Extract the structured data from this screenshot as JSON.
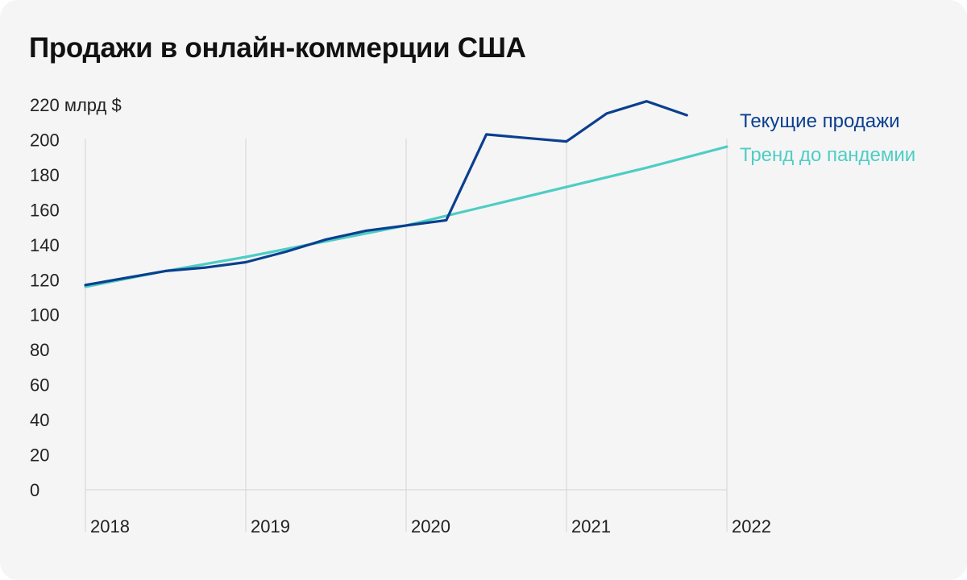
{
  "title": "Продажи в онлайн-коммерции США",
  "chart_data": {
    "type": "line",
    "title": "Продажи в онлайн-коммерции США",
    "ylabel": "",
    "y_unit_label": "220 млрд $",
    "ylim": [
      0,
      220
    ],
    "y_ticks": [
      0,
      20,
      40,
      60,
      80,
      100,
      120,
      140,
      160,
      180,
      200
    ],
    "xlim": [
      2018,
      2022
    ],
    "x_ticks": [
      "2018",
      "2019",
      "2020",
      "2021",
      "2022"
    ],
    "grid": "vertical lines at years",
    "legend_placement": "right, at line ends",
    "series": [
      {
        "name": "Текущие продажи",
        "color": "#0b3f8e",
        "x": [
          2018.0,
          2018.25,
          2018.5,
          2018.75,
          2019.0,
          2019.25,
          2019.5,
          2019.75,
          2020.0,
          2020.25,
          2020.5,
          2020.75,
          2021.0,
          2021.25,
          2021.5,
          2021.75
        ],
        "values": [
          117,
          121,
          125,
          127,
          130,
          136,
          143,
          148,
          151,
          154,
          203,
          201,
          199,
          215,
          222,
          214
        ]
      },
      {
        "name": "Тренд до пандемии",
        "color": "#4ecdc4",
        "x": [
          2018.0,
          2018.5,
          2019.0,
          2019.5,
          2020.0,
          2020.5,
          2021.0,
          2021.5,
          2022.0
        ],
        "values": [
          116,
          125,
          133,
          142,
          151,
          162,
          173,
          184,
          196
        ]
      }
    ]
  }
}
